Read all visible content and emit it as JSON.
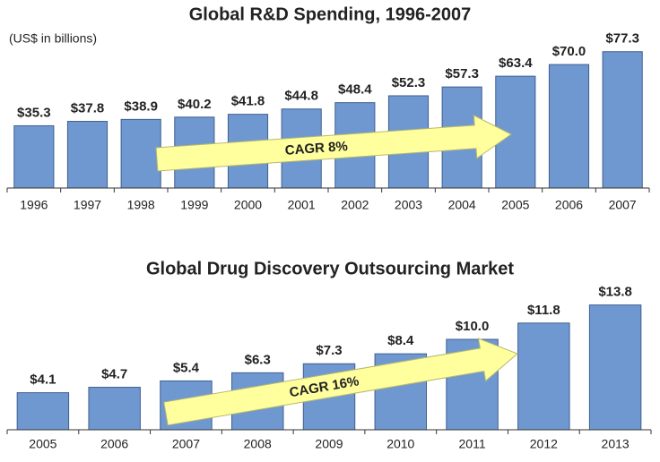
{
  "chart_data": [
    {
      "type": "bar",
      "title": "Global R&D Spending, 1996-2007",
      "subtitle": "(US$ in billions)",
      "categories": [
        "1996",
        "1997",
        "1998",
        "1999",
        "2000",
        "2001",
        "2002",
        "2003",
        "2004",
        "2005",
        "2006",
        "2007"
      ],
      "values": [
        35.3,
        37.8,
        38.9,
        40.2,
        41.8,
        44.8,
        48.4,
        52.3,
        57.3,
        63.4,
        70.0,
        77.3
      ],
      "value_labels": [
        "$35.3",
        "$37.8",
        "$38.9",
        "$40.2",
        "$41.8",
        "$44.8",
        "$48.4",
        "$52.3",
        "$57.3",
        "$63.4",
        "$70.0",
        "$77.3"
      ],
      "color": "#6f98d1",
      "annotation": "CAGR 8%"
    },
    {
      "type": "bar",
      "title": "Global Drug Discovery Outsourcing Market",
      "categories": [
        "2005",
        "2006",
        "2007",
        "2008",
        "2009",
        "2010",
        "2011",
        "2012",
        "2013"
      ],
      "values": [
        4.1,
        4.7,
        5.4,
        6.3,
        7.3,
        8.4,
        10.0,
        11.8,
        13.8
      ],
      "value_labels": [
        "$4.1",
        "$4.7",
        "$5.4",
        "$6.3",
        "$7.3",
        "$8.4",
        "$10.0",
        "$11.8",
        "$13.8"
      ],
      "color": "#6f98d1",
      "annotation": "CAGR 16%"
    }
  ]
}
